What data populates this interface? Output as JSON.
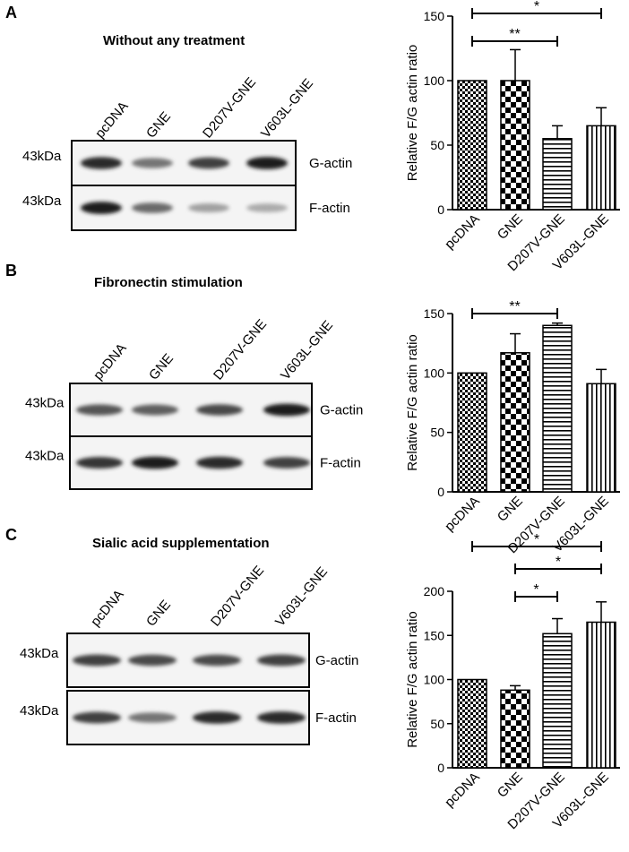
{
  "panels": [
    {
      "label": "A",
      "title": "Without any treatment",
      "blot": {
        "lanes": [
          "pcDNA",
          "GNE",
          "D207V-GNE",
          "V603L-GNE"
        ],
        "rows": [
          {
            "mw": "43kDa",
            "name": "G-actin",
            "intensities": [
              0.9,
              0.55,
              0.8,
              0.95
            ]
          },
          {
            "mw": "43kDa",
            "name": "F-actin",
            "intensities": [
              0.95,
              0.6,
              0.35,
              0.3
            ]
          }
        ]
      },
      "chart": {
        "ylabel": "Relative F/G actin ratio",
        "yticks": [
          "0",
          "50",
          "100",
          "150"
        ],
        "sig": [
          {
            "from": 0,
            "to": 2,
            "label": "**"
          },
          {
            "from": 0,
            "to": 3,
            "label": "*"
          }
        ]
      }
    },
    {
      "label": "B",
      "title": "Fibronectin stimulation",
      "blot": {
        "lanes": [
          "pcDNA",
          "GNE",
          "D207V-GNE",
          "V603L-GNE"
        ],
        "rows": [
          {
            "mw": "43kDa",
            "name": "G-actin",
            "intensities": [
              0.7,
              0.65,
              0.75,
              0.95
            ]
          },
          {
            "mw": "43kDa",
            "name": "F-actin",
            "intensities": [
              0.85,
              0.95,
              0.9,
              0.8
            ]
          }
        ]
      },
      "chart": {
        "ylabel": "Relative F/G actin ratio",
        "yticks": [
          "0",
          "50",
          "100",
          "150"
        ],
        "sig": [
          {
            "from": 0,
            "to": 2,
            "label": "**"
          }
        ]
      }
    },
    {
      "label": "C",
      "title": "Sialic acid supplementation",
      "blot": {
        "lanes": [
          "pcDNA",
          "GNE",
          "D207V-GNE",
          "V603L-GNE"
        ],
        "rows": [
          {
            "mw": "43kDa",
            "name": "G-actin",
            "intensities": [
              0.8,
              0.75,
              0.75,
              0.8
            ]
          },
          {
            "mw": "43kDa",
            "name": "F-actin",
            "intensities": [
              0.8,
              0.55,
              0.9,
              0.9
            ]
          }
        ]
      },
      "chart": {
        "ylabel": "Relative F/G actin ratio",
        "yticks": [
          "0",
          "50",
          "100",
          "150",
          "200"
        ],
        "sig": [
          {
            "from": 1,
            "to": 2,
            "label": "*"
          },
          {
            "from": 1,
            "to": 3,
            "label": "*"
          },
          {
            "from": 0,
            "to": 3,
            "label": "*"
          }
        ]
      }
    }
  ],
  "chart_data": [
    {
      "type": "bar",
      "title": "",
      "xlabel": "",
      "ylabel": "Relative F/G actin ratio",
      "categories": [
        "pcDNA",
        "GNE",
        "D207V-GNE",
        "V603L-GNE"
      ],
      "values": [
        100,
        100,
        55,
        65
      ],
      "errors": [
        0,
        24,
        10,
        14
      ],
      "ylim": [
        0,
        150
      ],
      "patterns": [
        "checker-small",
        "checker-large",
        "horizontal-lines",
        "vertical-lines"
      ]
    },
    {
      "type": "bar",
      "title": "",
      "xlabel": "",
      "ylabel": "Relative F/G actin ratio",
      "categories": [
        "pcDNA",
        "GNE",
        "D207V-GNE",
        "V603L-GNE"
      ],
      "values": [
        100,
        117,
        140,
        91
      ],
      "errors": [
        0,
        16,
        2,
        12
      ],
      "ylim": [
        0,
        150
      ],
      "patterns": [
        "checker-small",
        "checker-large",
        "horizontal-lines",
        "vertical-lines"
      ]
    },
    {
      "type": "bar",
      "title": "",
      "xlabel": "",
      "ylabel": "Relative F/G actin ratio",
      "categories": [
        "pcDNA",
        "GNE",
        "D207V-GNE",
        "V603L-GNE"
      ],
      "values": [
        100,
        88,
        152,
        165
      ],
      "errors": [
        0,
        5,
        17,
        23
      ],
      "ylim": [
        0,
        200
      ],
      "patterns": [
        "checker-small",
        "checker-large",
        "horizontal-lines",
        "vertical-lines"
      ]
    }
  ]
}
